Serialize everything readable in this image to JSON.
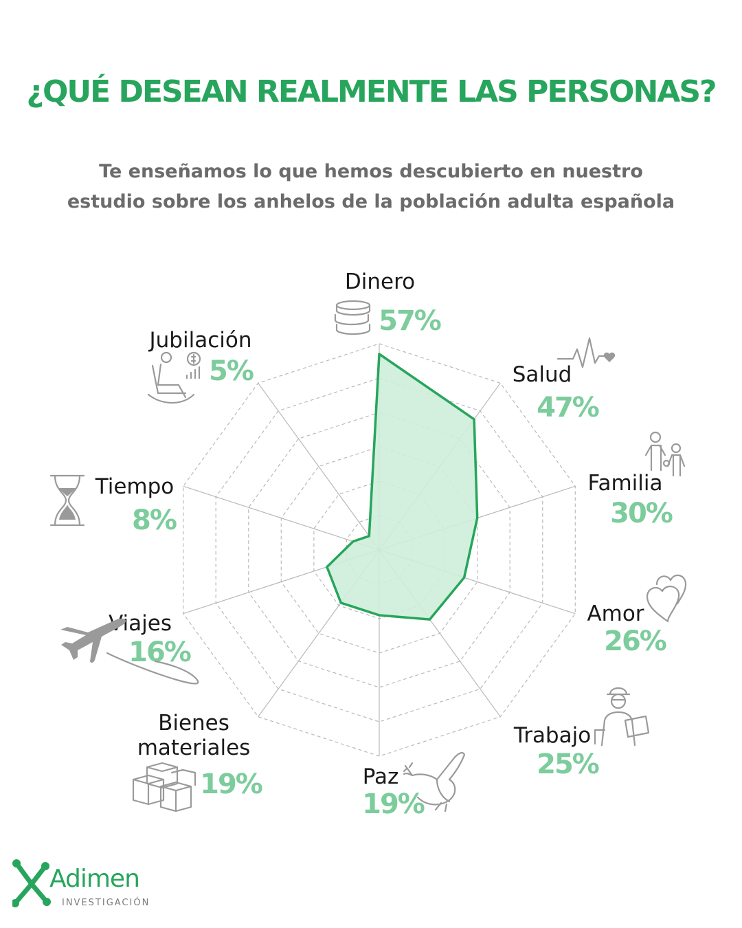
{
  "header": {
    "title": "¿QUÉ DESEAN REALMENTE LAS PERSONAS?",
    "subtitle_line1": "Te enseñamos lo que hemos descubierto en nuestro",
    "subtitle_line2": "estudio sobre los anhelos de la población adulta española"
  },
  "colors": {
    "accent": "#27a55c",
    "percent": "#7ccc9c",
    "fill": "#cdeed9",
    "grid": "#b9b9b9",
    "icon": "#9a9a9a"
  },
  "chart_data": {
    "type": "radar",
    "title": "¿QUÉ DESEAN REALMENTE LAS PERSONAS?",
    "unit": "%",
    "rmax": 60,
    "grid_rings": 6,
    "categories": [
      "Dinero",
      "Salud",
      "Familia",
      "Amor",
      "Trabajo",
      "Paz",
      "Bienes materiales",
      "Viajes",
      "Tiempo",
      "Jubilación"
    ],
    "label_lines": [
      [
        "Dinero"
      ],
      [
        "Salud"
      ],
      [
        "Familia"
      ],
      [
        "Amor"
      ],
      [
        "Trabajo"
      ],
      [
        "Paz"
      ],
      [
        "Bienes",
        "materiales"
      ],
      [
        "Viajes"
      ],
      [
        "Tiempo"
      ],
      [
        "Jubilación"
      ]
    ],
    "percent_labels": [
      "57%",
      "47%",
      "30%",
      "26%",
      "25%",
      "19%",
      "19%",
      "16%",
      "8%",
      "5%"
    ],
    "icons": [
      "coins-icon",
      "heartbeat-icon",
      "family-icon",
      "hearts-icon",
      "worker-icon",
      "dove-icon",
      "boxes-icon",
      "airplane-icon",
      "hourglass-icon",
      "rocking-chair-icon"
    ],
    "series": [
      {
        "values": [
          57,
          47,
          30,
          26,
          25,
          19,
          19,
          16,
          8,
          5
        ]
      }
    ],
    "grid": true,
    "legend": "none"
  },
  "logo": {
    "name": "Adimen",
    "tagline": "INVESTIGACIÓN"
  }
}
